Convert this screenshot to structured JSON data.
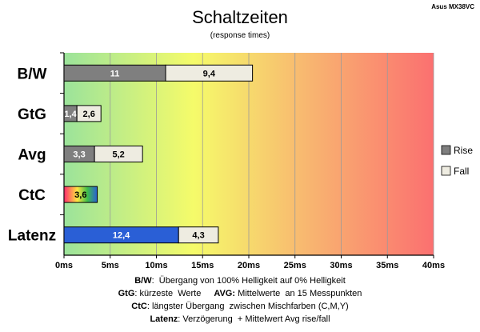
{
  "chart_data": {
    "type": "bar",
    "orientation": "horizontal",
    "stacked": true,
    "title": "Schaltzeiten",
    "subtitle": "(response times)",
    "corner_label": "Asus MX38VC",
    "categories": [
      "B/W",
      "GtG",
      "Avg",
      "CtC",
      "Latenz"
    ],
    "series": [
      {
        "name": "Rise",
        "values": [
          11,
          1.4,
          3.3,
          3.6,
          12.4
        ],
        "labels": [
          "11",
          "1,4",
          "3,3",
          "3,6",
          "12,4"
        ]
      },
      {
        "name": "Fall",
        "values": [
          9.4,
          2.6,
          5.2,
          null,
          4.3
        ],
        "labels": [
          "9,4",
          "2,6",
          "5,2",
          "",
          "4,3"
        ]
      }
    ],
    "xlim": [
      0,
      40
    ],
    "xticks": [
      {
        "value": 0,
        "label": "0ms"
      },
      {
        "value": 5,
        "label": "5ms"
      },
      {
        "value": 10,
        "label": "10ms"
      },
      {
        "value": 15,
        "label": "15ms"
      },
      {
        "value": 20,
        "label": "20ms"
      },
      {
        "value": 25,
        "label": "25ms"
      },
      {
        "value": 30,
        "label": "30ms"
      },
      {
        "value": 35,
        "label": "35ms"
      },
      {
        "value": 40,
        "label": "40ms"
      }
    ],
    "grid": true,
    "legend": {
      "position": "right"
    },
    "colors": {
      "rise": "#7f7f7f",
      "fall": "#eeece1",
      "latenz_rise": "#2a5fd6",
      "background_gradient": [
        "#9be39b",
        "#f5fb6a",
        "#f8b870",
        "#fb7070"
      ]
    }
  },
  "footnotes": {
    "bw_key": "B/W",
    "bw_text": ":  Übergang von 100% Helligkeit auf 0% Helligkeit",
    "gtg_key": "GtG",
    "gtg_text": ": kürzeste  Werte",
    "avg_key": "AVG:",
    "avg_text": " Mittelwerte  an 15 Messpunkten",
    "ctc_key": "CtC",
    "ctc_text": ": längster Übergang  zwischen Mischfarben (C,M,Y)",
    "latenz_key": "Latenz",
    "latenz_text": ": Verzögerung  + Mittelwert Avg rise/fall"
  }
}
